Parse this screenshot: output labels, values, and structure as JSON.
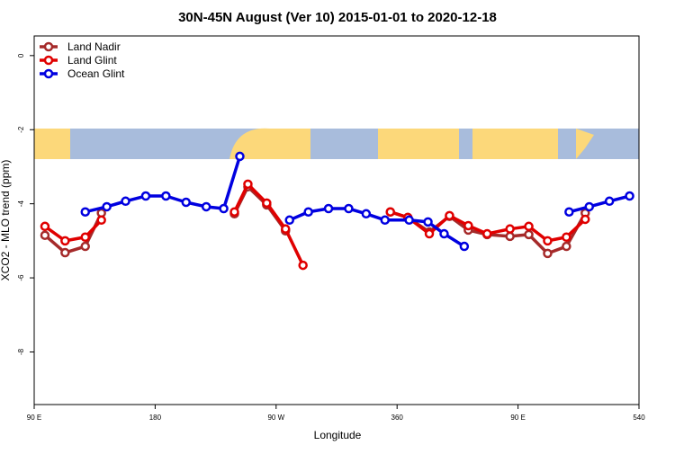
{
  "chart_data": {
    "type": "line",
    "title": "30N-45N August (Ver 10)   2015-01-01 to 2020-12-18",
    "xlabel": "Longitude",
    "ylabel": "XCO2 - MLO trend (ppm)",
    "xlim": [
      90,
      540
    ],
    "xticks": [
      {
        "value": 90,
        "label": "90 E"
      },
      180,
      {
        "value": 270,
        "label": "90 W"
      },
      360,
      {
        "value": 450,
        "label": "90 E"
      },
      540
    ],
    "ylim": [
      -9.42,
      0.53
    ],
    "yticks": [
      0,
      -2,
      -4,
      -6,
      -8
    ],
    "legend": "top-left",
    "series": [
      {
        "name": "Land Nadir",
        "color": "#a52a2a",
        "x": [
          98,
          113,
          128,
          140,
          null,
          239,
          249,
          263,
          277,
          null,
          355,
          368,
          384,
          399,
          413,
          427,
          444,
          458,
          472,
          486,
          500
        ],
        "values": [
          -4.85,
          -5.32,
          -5.15,
          -4.25,
          null,
          -4.27,
          -3.54,
          -4.03,
          -4.73,
          null,
          -4.22,
          -4.37,
          -4.76,
          -4.34,
          -4.71,
          -4.83,
          -4.88,
          -4.83,
          -5.34,
          -5.15,
          -4.25
        ]
      },
      {
        "name": "Land Glint",
        "color": "#e00000",
        "x": [
          98,
          113,
          128,
          140,
          null,
          239,
          249,
          263,
          277,
          290,
          null,
          355,
          368,
          384,
          399,
          413,
          427,
          444,
          458,
          472,
          486,
          500
        ],
        "values": [
          -4.61,
          -5.0,
          -4.9,
          -4.44,
          null,
          -4.22,
          -3.47,
          -3.98,
          -4.68,
          -5.66,
          null,
          -4.22,
          -4.37,
          -4.81,
          -4.32,
          -4.59,
          -4.81,
          -4.68,
          -4.61,
          -5.0,
          -4.9,
          -4.42
        ]
      },
      {
        "name": "Ocean Glint",
        "color": "#0000e0",
        "x": [
          128,
          144,
          158,
          173,
          188,
          203,
          218,
          231,
          243,
          null,
          280,
          294,
          309,
          324,
          337,
          351,
          369,
          383,
          395,
          410,
          null,
          488,
          503,
          518,
          533
        ],
        "values": [
          -4.22,
          -4.08,
          -3.93,
          -3.79,
          -3.79,
          -3.96,
          -4.08,
          -4.13,
          -2.72,
          null,
          -4.44,
          -4.22,
          -4.13,
          -4.13,
          -4.27,
          -4.44,
          -4.44,
          -4.49,
          -4.81,
          -5.15,
          null,
          -4.22,
          -4.08,
          -3.93,
          -3.79
        ]
      }
    ]
  }
}
